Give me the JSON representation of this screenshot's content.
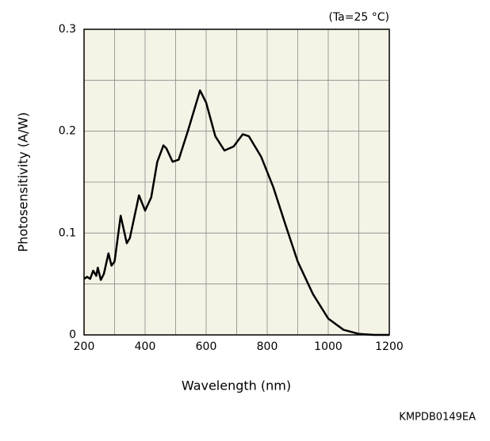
{
  "chart_data": {
    "type": "line",
    "annotation": "(Ta=25 °C)",
    "code": "KMPDB0149EA",
    "x_label": "Wavelength (nm)",
    "y_label": "Photosensitivity (A/W)",
    "xlim": [
      200,
      1200
    ],
    "ylim": [
      0,
      0.3
    ],
    "xticks": [
      200,
      400,
      600,
      800,
      1000,
      1200
    ],
    "yticks": [
      0,
      0.1,
      0.2,
      0.3
    ],
    "xminor_ticks": [
      300,
      500,
      700,
      900,
      1100
    ],
    "yminor_ticks": [
      0.05,
      0.15,
      0.25
    ],
    "grid": true,
    "background": "#f5f3e6",
    "series": [
      {
        "name": "Photosensitivity",
        "color": "#000000",
        "x": [
          200,
          210,
          220,
          230,
          240,
          245,
          255,
          265,
          280,
          290,
          300,
          320,
          340,
          350,
          380,
          400,
          420,
          440,
          460,
          470,
          490,
          510,
          540,
          580,
          600,
          630,
          660,
          690,
          720,
          740,
          780,
          820,
          860,
          900,
          950,
          1000,
          1050,
          1100,
          1150,
          1200
        ],
        "values": [
          0.055,
          0.057,
          0.055,
          0.063,
          0.058,
          0.066,
          0.054,
          0.06,
          0.08,
          0.068,
          0.072,
          0.117,
          0.09,
          0.095,
          0.137,
          0.122,
          0.135,
          0.17,
          0.186,
          0.183,
          0.17,
          0.172,
          0.2,
          0.24,
          0.228,
          0.195,
          0.181,
          0.185,
          0.197,
          0.195,
          0.175,
          0.145,
          0.108,
          0.072,
          0.04,
          0.016,
          0.005,
          0.001,
          0,
          0
        ]
      }
    ]
  }
}
